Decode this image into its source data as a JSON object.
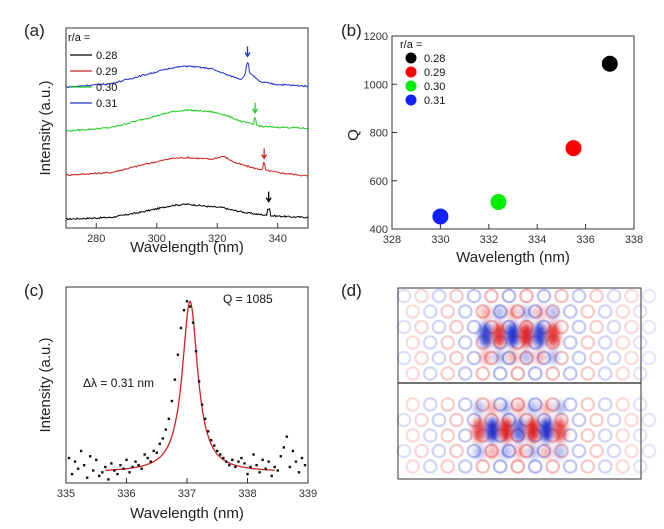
{
  "figure": {
    "panel_labels": [
      "(a)",
      "(b)",
      "(c)",
      "(d)"
    ]
  },
  "chart_data": [
    {
      "panel": "(a)",
      "type": "line",
      "title": "",
      "xlabel": "Wavelength (nm)",
      "ylabel": "Intensity (a.u.)",
      "xlim": [
        270,
        350
      ],
      "xticks": [
        280,
        300,
        320,
        340
      ],
      "legend_title": "r/a =",
      "series": [
        {
          "name": "0.28",
          "color": "#000000",
          "peak_nm": 337.0,
          "x": [
            270,
            285,
            295,
            305,
            310,
            318,
            322,
            324,
            330,
            337,
            345,
            350
          ],
          "y": [
            0.02,
            0.06,
            0.18,
            0.33,
            0.36,
            0.3,
            0.28,
            0.24,
            0.16,
            0.1,
            0.07,
            0.06
          ]
        },
        {
          "name": "0.29",
          "color": "#cc2222",
          "peak_nm": 335.5,
          "x": [
            270,
            285,
            295,
            305,
            310,
            318,
            322,
            326,
            332,
            340,
            350
          ],
          "y": [
            1.02,
            1.08,
            1.25,
            1.4,
            1.42,
            1.38,
            1.45,
            1.3,
            1.18,
            1.08,
            1.0
          ]
        },
        {
          "name": "0.30",
          "color": "#22cc22",
          "peak_nm": 332.5,
          "x": [
            270,
            285,
            295,
            305,
            310,
            318,
            322,
            328,
            335,
            345,
            350
          ],
          "y": [
            2.02,
            2.1,
            2.28,
            2.46,
            2.5,
            2.46,
            2.4,
            2.24,
            2.12,
            2.1,
            2.08
          ]
        },
        {
          "name": "0.31",
          "color": "#2233cc",
          "peak_nm": 330.0,
          "x": [
            270,
            285,
            295,
            305,
            310,
            318,
            324,
            328,
            330,
            334,
            340,
            350
          ],
          "y": [
            3.02,
            3.1,
            3.28,
            3.46,
            3.5,
            3.44,
            3.28,
            3.2,
            3.4,
            3.14,
            3.08,
            3.04
          ]
        }
      ]
    },
    {
      "panel": "(b)",
      "type": "scatter",
      "title": "",
      "xlabel": "Wavelength (nm)",
      "ylabel": "Q",
      "xlim": [
        328,
        338
      ],
      "ylim": [
        400,
        1200
      ],
      "xticks": [
        328,
        330,
        332,
        334,
        336,
        338
      ],
      "yticks": [
        400,
        600,
        800,
        1000,
        1200
      ],
      "legend_title": "r/a =",
      "series": [
        {
          "name": "0.28",
          "color": "#000000",
          "x": 337.0,
          "y": 1085
        },
        {
          "name": "0.29",
          "color": "#ff0000",
          "x": 335.5,
          "y": 735
        },
        {
          "name": "0.30",
          "color": "#00ee00",
          "x": 332.4,
          "y": 512
        },
        {
          "name": "0.31",
          "color": "#1020ff",
          "x": 330.0,
          "y": 452
        }
      ]
    },
    {
      "panel": "(c)",
      "type": "scatter",
      "title": "",
      "xlabel": "Wavelength (nm)",
      "ylabel": "Intensity (a.u.)",
      "xlim": [
        335,
        339
      ],
      "ylim": [
        0,
        1.1
      ],
      "xticks": [
        335,
        336,
        337,
        338,
        339
      ],
      "annotations": [
        "Q = 1085",
        "Δλ = 0.31 nm"
      ],
      "fit": {
        "center": 337.05,
        "fwhm": 0.31,
        "baseline": 0.06,
        "amplitude": 0.96,
        "x_range": [
          335.65,
          338.45
        ],
        "color": "#cc2222"
      },
      "data_points": {
        "x": [
          335.05,
          335.1,
          335.15,
          335.2,
          335.25,
          335.3,
          335.35,
          335.4,
          335.45,
          335.5,
          335.55,
          335.6,
          335.65,
          335.7,
          335.75,
          335.8,
          335.85,
          335.9,
          335.95,
          336.0,
          336.05,
          336.1,
          336.15,
          336.2,
          336.25,
          336.3,
          336.35,
          336.4,
          336.45,
          336.5,
          336.55,
          336.6,
          336.65,
          336.7,
          336.75,
          336.8,
          336.85,
          336.9,
          336.95,
          337.0,
          337.05,
          337.1,
          337.15,
          337.2,
          337.25,
          337.3,
          337.35,
          337.4,
          337.45,
          337.5,
          337.55,
          337.6,
          337.65,
          337.7,
          337.75,
          337.8,
          337.85,
          337.9,
          337.95,
          338.0,
          338.05,
          338.1,
          338.15,
          338.2,
          338.25,
          338.3,
          338.35,
          338.4,
          338.45,
          338.5,
          338.55,
          338.6,
          338.65,
          338.7,
          338.75,
          338.8,
          338.85,
          338.9,
          338.95
        ],
        "y": [
          0.14,
          0.05,
          0.12,
          0.08,
          0.18,
          0.1,
          0.03,
          0.15,
          0.07,
          0.13,
          0.04,
          0.06,
          0.09,
          0.02,
          0.11,
          0.07,
          0.05,
          0.1,
          0.08,
          0.13,
          0.06,
          0.09,
          0.12,
          0.1,
          0.08,
          0.16,
          0.14,
          0.12,
          0.18,
          0.17,
          0.22,
          0.25,
          0.3,
          0.36,
          0.46,
          0.58,
          0.72,
          0.87,
          0.97,
          1.02,
          0.99,
          0.9,
          0.74,
          0.57,
          0.44,
          0.36,
          0.29,
          0.24,
          0.21,
          0.18,
          0.16,
          0.14,
          0.12,
          0.1,
          0.13,
          0.09,
          0.12,
          0.14,
          0.11,
          0.05,
          0.09,
          0.16,
          0.1,
          0.06,
          0.13,
          0.08,
          0.12,
          0.04,
          0.09,
          0.07,
          0.15,
          0.2,
          0.26,
          0.09,
          0.18,
          0.12,
          0.06,
          0.14,
          0.1
        ]
      }
    },
    {
      "panel": "(d)",
      "type": "heatmap",
      "title": "",
      "description_colors": {
        "positive": "#e02020",
        "negative": "#2030d0"
      },
      "maps": [
        {
          "name": "top",
          "lobes": [
            -0.9,
            0.9,
            -1.0,
            1.0,
            -0.9,
            0.9
          ],
          "side_lobes": 0.35
        },
        {
          "name": "bottom",
          "lobes": [
            0.8,
            -1.0,
            1.0,
            -0.7,
            1.0,
            -1.0,
            0.8
          ],
          "side_lobes": 0.35
        }
      ]
    }
  ]
}
